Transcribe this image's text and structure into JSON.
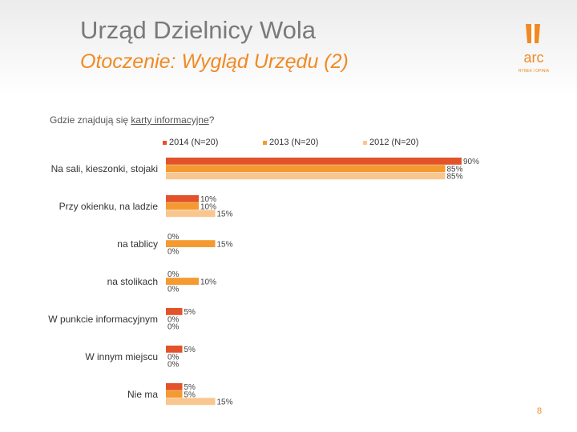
{
  "header": {
    "title": "Urząd Dzielnicy Wola",
    "subtitle": "Otoczenie: Wygląd Urzędu (2)",
    "logo_text": "arc",
    "logo_subtext": "RYNEK I OPINIA"
  },
  "question": {
    "prefix": "Gdzie znajdują się ",
    "underlined": "karty informacyjne",
    "suffix": "?"
  },
  "page_number": "8",
  "colors": {
    "accent": "#f08a24",
    "title_gray": "#7a7a7a",
    "s2014": "#e2532a",
    "s2013": "#f49a30",
    "s2012": "#f8c68e"
  },
  "chart_data": {
    "type": "bar",
    "orientation": "horizontal",
    "categories": [
      "Na sali, kieszonki, stojaki",
      "Przy okienku, na ladzie",
      "na tablicy",
      "na stolikach",
      "W punkcie informacyjnym",
      "W innym miejscu",
      "Nie ma"
    ],
    "series": [
      {
        "name": "2014 (N=20)",
        "color": "#e2532a",
        "values": [
          90,
          10,
          0,
          0,
          5,
          5,
          5
        ]
      },
      {
        "name": "2013 (N=20)",
        "color": "#f49a30",
        "values": [
          85,
          10,
          15,
          10,
          0,
          0,
          5
        ]
      },
      {
        "name": "2012 (N=20)",
        "color": "#f8c68e",
        "values": [
          85,
          15,
          0,
          0,
          0,
          0,
          15
        ]
      }
    ],
    "value_suffix": "%",
    "xlim": [
      0,
      100
    ],
    "legend_position": "top",
    "grid": false
  }
}
